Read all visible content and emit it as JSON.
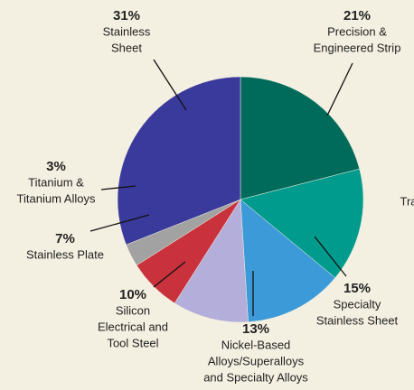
{
  "chart_data": {
    "type": "pie",
    "categories": [
      [
        "Precision &",
        "Engineered Strip"
      ],
      [
        "Specialty",
        "Stainless Sheet"
      ],
      [
        "Nickel-Based",
        "Alloys/Superalloys",
        "and Specialty Alloys"
      ],
      [
        "Silicon",
        "Electrical and",
        "Tool Steel"
      ],
      [
        "Stainless Plate"
      ],
      [
        "Titanium &",
        "Titanium Alloys"
      ],
      [
        "Stainless",
        "Sheet"
      ]
    ],
    "values": [
      21,
      15,
      13,
      10,
      7,
      3,
      31
    ],
    "value_labels": [
      "21%",
      "15%",
      "13%",
      "10%",
      "7%",
      "3%",
      "31%"
    ],
    "colors": [
      "#006b5a",
      "#009b8c",
      "#3c9ad8",
      "#b4aedb",
      "#c9323c",
      "#a2a2a2",
      "#3a3a9c"
    ],
    "annotations": [
      "Tra"
    ]
  }
}
